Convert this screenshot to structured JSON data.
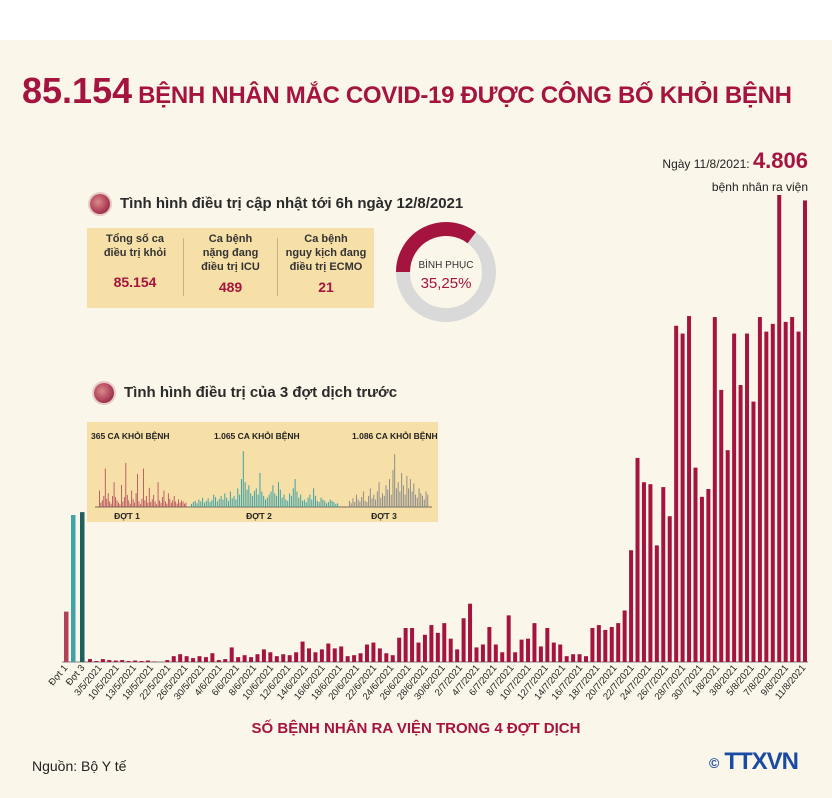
{
  "headline": {
    "number": "85.154",
    "text": "BỆNH NHÂN MẮC COVID-19 ĐƯỢC CÔNG BỐ KHỎI BỆNH"
  },
  "note": {
    "date_label": "Ngày 11/8/2021:",
    "value": "4.806",
    "suffix": "bệnh nhân ra viện"
  },
  "treatment": {
    "title": "Tình hình điều trị cập nhật tới 6h ngày 12/8/2021",
    "stats": [
      {
        "label_lines": [
          "Tổng số ca",
          "điều trị khỏi"
        ],
        "value": "85.154"
      },
      {
        "label_lines": [
          "Ca bệnh",
          "nặng đang",
          "điều trị ICU"
        ],
        "value": "489"
      },
      {
        "label_lines": [
          "Ca bệnh",
          "nguy kịch đang",
          "điều trị ECMO"
        ],
        "value": "21"
      }
    ],
    "donut": {
      "label": "BÌNH PHỤC",
      "value_text": "35,25%",
      "fraction": 0.3525,
      "color": "#a5133f",
      "track_color": "#d9d9d9"
    }
  },
  "previous": {
    "title": "Tình hình điều trị của 3 đợt dịch trước",
    "waves": [
      {
        "label": "ĐỢT 1",
        "total": "365 CA KHỎI BỆNH",
        "color": "#b0425a"
      },
      {
        "label": "ĐỢT 2",
        "total": "1.065 CA KHỎI BỆNH",
        "color": "#3fa3a8"
      },
      {
        "label": "ĐỢT 3",
        "total": "1.086 CA KHỎI BỆNH",
        "color": "#8a8a8a"
      }
    ]
  },
  "chart_data": {
    "type": "bar",
    "xlabel": "SỐ BỆNH NHÂN RA VIỆN TRONG 4 ĐỢT DỊCH",
    "ylim": [
      0,
      4806
    ],
    "colors": {
      "dot1": "#b0425a",
      "dot2": "#3fa3a8",
      "dot3": "#1f5f5f",
      "wave4": "#a5133f"
    },
    "prior_waves": [
      {
        "name": "Đợt 1",
        "value": 365
      },
      {
        "name": "Đợt 2",
        "value": 1065
      },
      {
        "name": "Đợt 3",
        "value": 1086
      }
    ],
    "tick_labels": [
      "Đợt 1",
      "Đợt 3",
      "3/5/2021",
      "10/5/2021",
      "13/5/2021",
      "18/5/2021",
      "22/5/2021",
      "26/5/2021",
      "30/5/2021",
      "4/6/2021",
      "6/6/2021",
      "8/6/2021",
      "10/6/2021",
      "12/6/2021",
      "14/6/2021",
      "16/6/2021",
      "18/6/2021",
      "20/6/2021",
      "22/6/2021",
      "24/6/2021",
      "26/6/2021",
      "28/6/2021",
      "30/6/2021",
      "2/7/2021",
      "4/7/2021",
      "6/7/2021",
      "8/7/2021",
      "10/7/2021",
      "12/7/2021",
      "14/7/2021",
      "16/7/2021",
      "18/7/2021",
      "20/7/2021",
      "22/7/2021",
      "24/7/2021",
      "26/7/2021",
      "28/7/2021",
      "30/7/2021",
      "1/8/2021",
      "3/8/2021",
      "5/8/2021",
      "7/8/2021",
      "9/8/2021",
      "11/8/2021"
    ],
    "wave4_values": [
      30,
      10,
      30,
      20,
      15,
      20,
      10,
      15,
      10,
      15,
      5,
      0,
      20,
      60,
      80,
      60,
      40,
      60,
      50,
      90,
      20,
      30,
      150,
      50,
      70,
      50,
      80,
      130,
      100,
      60,
      80,
      70,
      100,
      210,
      140,
      100,
      130,
      190,
      140,
      160,
      60,
      70,
      90,
      180,
      200,
      140,
      90,
      70,
      250,
      350,
      350,
      200,
      280,
      380,
      300,
      400,
      240,
      130,
      450,
      600,
      150,
      180,
      360,
      180,
      100,
      480,
      100,
      230,
      240,
      400,
      160,
      350,
      200,
      180,
      60,
      80,
      80,
      60,
      350,
      380,
      330,
      360,
      400,
      530,
      1150,
      2100,
      1850,
      1830,
      1200,
      1800,
      1500,
      3460,
      3380,
      3560,
      2000,
      1700,
      1780,
      3550,
      2800,
      2180,
      3380,
      2850,
      3380,
      2680,
      3550,
      3400,
      3480,
      4806,
      3500,
      3550,
      3400,
      4750
    ],
    "prev_series": {
      "d1": [
        30,
        8,
        12,
        20,
        70,
        15,
        25,
        10,
        6,
        20,
        45,
        18,
        12,
        8,
        5,
        40,
        10,
        18,
        80,
        22,
        12,
        6,
        30,
        14,
        8,
        25,
        60,
        10,
        5,
        15,
        70,
        12,
        20,
        8,
        35,
        9,
        14,
        22,
        10,
        5,
        45,
        12,
        8,
        18,
        30,
        10,
        6,
        25,
        15,
        8,
        12,
        20,
        10,
        6,
        14,
        8,
        12,
        10,
        6,
        8
      ],
      "d2": [
        5,
        8,
        10,
        6,
        12,
        9,
        15,
        7,
        10,
        14,
        8,
        11,
        20,
        16,
        9,
        13,
        18,
        12,
        22,
        15,
        10,
        25,
        14,
        18,
        12,
        30,
        20,
        45,
        90,
        40,
        28,
        35,
        22,
        18,
        26,
        30,
        20,
        55,
        25,
        18,
        12,
        15,
        20,
        25,
        35,
        22,
        18,
        40,
        28,
        15,
        20,
        12,
        10,
        22,
        18,
        30,
        45,
        25,
        15,
        20,
        10,
        12,
        8,
        15,
        20,
        12,
        30,
        18,
        10,
        8,
        15,
        12,
        10,
        6,
        8,
        12,
        10,
        8,
        5,
        6
      ],
      "d3": [
        10,
        6,
        14,
        8,
        20,
        12,
        9,
        16,
        25,
        10,
        8,
        18,
        30,
        14,
        20,
        12,
        25,
        40,
        15,
        22,
        18,
        35,
        28,
        45,
        20,
        60,
        85,
        30,
        40,
        25,
        55,
        35,
        20,
        50,
        30,
        45,
        25,
        38,
        20,
        15,
        30,
        22,
        18,
        12,
        25,
        20
      ]
    }
  },
  "source": "Nguồn: Bộ Y tế",
  "logo": "TTXVN"
}
